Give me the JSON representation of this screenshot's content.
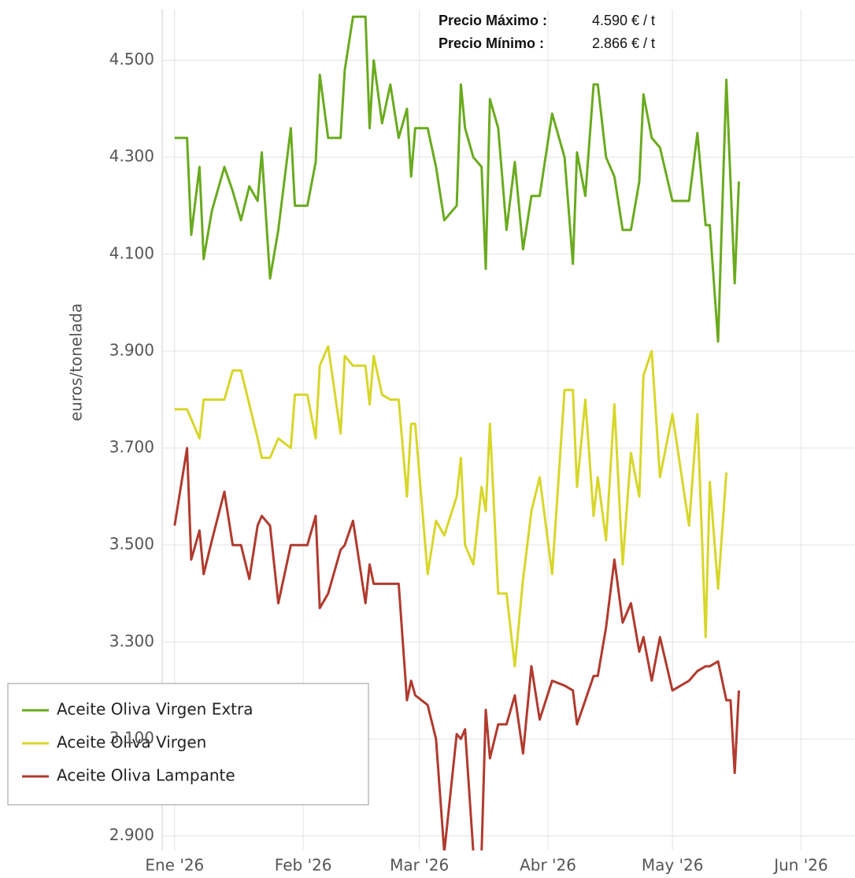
{
  "chart_data": {
    "type": "line",
    "y_label": "euros/tonelada",
    "annotations": [
      {
        "label": "Precio Máximo :",
        "value": "4.590  € / t"
      },
      {
        "label": "Precio Mínimo :",
        "value": "2.866  € /  t"
      }
    ],
    "x": [
      0,
      3,
      4,
      6,
      7,
      9,
      12,
      14,
      16,
      18,
      20,
      21,
      23,
      25,
      28,
      29,
      32,
      34,
      35,
      37,
      40,
      41,
      43,
      46,
      47,
      48,
      50,
      52,
      54,
      56,
      57,
      58,
      61,
      63,
      65,
      68,
      69,
      70,
      72,
      74,
      75,
      76,
      78,
      80,
      82,
      84,
      86,
      88,
      91,
      94,
      96,
      97,
      99,
      101,
      102,
      104,
      106,
      108,
      110,
      112,
      113,
      115,
      117,
      120,
      124,
      126,
      128,
      129,
      131,
      133,
      134,
      135,
      136
    ],
    "series": [
      {
        "name": "Aceite Oliva Virgen Extra",
        "color": "#6aaa1e",
        "values": [
          4340,
          4340,
          4140,
          4280,
          4090,
          4190,
          4280,
          4230,
          4170,
          4240,
          4210,
          4310,
          4050,
          4150,
          4360,
          4200,
          4200,
          4290,
          4470,
          4340,
          4340,
          4480,
          4590,
          4590,
          4360,
          4500,
          4370,
          4450,
          4340,
          4400,
          4260,
          4360,
          4360,
          4280,
          4170,
          4200,
          4450,
          4360,
          4300,
          4280,
          4070,
          4420,
          4360,
          4150,
          4290,
          4110,
          4220,
          4220,
          4390,
          4300,
          4080,
          4310,
          4220,
          4450,
          4450,
          4300,
          4260,
          4150,
          4150,
          4250,
          4430,
          4340,
          4320,
          4210,
          4210,
          4350,
          4160,
          4160,
          3920,
          4460,
          4250,
          4040,
          4250
        ]
      },
      {
        "name": "Aceite Oliva Virgen",
        "color": "#d8d62a",
        "values": [
          3780,
          3780,
          3760,
          3720,
          3800,
          3800,
          3800,
          3860,
          3860,
          3790,
          3720,
          3680,
          3680,
          3720,
          3700,
          3810,
          3810,
          3720,
          3870,
          3910,
          3730,
          3890,
          3870,
          3870,
          3790,
          3890,
          3810,
          3800,
          3800,
          3600,
          3750,
          3750,
          3440,
          3550,
          3520,
          3600,
          3680,
          3500,
          3460,
          3620,
          3570,
          3750,
          3400,
          3400,
          3250,
          3430,
          3570,
          3640,
          3440,
          3820,
          3820,
          3620,
          3800,
          3560,
          3640,
          3510,
          3790,
          3460,
          3690,
          3600,
          3850,
          3900,
          3640,
          3770,
          3540,
          3770,
          3310,
          3630,
          3410,
          3650,
          null,
          null,
          null
        ]
      },
      {
        "name": "Aceite Oliva Lampante",
        "color": "#b03a2e",
        "values": [
          3540,
          3700,
          3470,
          3530,
          3440,
          3510,
          3610,
          3500,
          3500,
          3430,
          3540,
          3560,
          3540,
          3380,
          3500,
          3500,
          3500,
          3560,
          3370,
          3400,
          3490,
          3500,
          3550,
          3380,
          3460,
          3420,
          3420,
          3420,
          3420,
          3180,
          3220,
          3190,
          3170,
          3100,
          2866,
          3110,
          3100,
          3120,
          2866,
          2866,
          3160,
          3060,
          3130,
          3130,
          3190,
          3070,
          3250,
          3140,
          3220,
          3210,
          3200,
          3130,
          3180,
          3230,
          3230,
          3330,
          3470,
          3340,
          3380,
          3280,
          3310,
          3220,
          3310,
          3200,
          3220,
          3240,
          3250,
          3250,
          3260,
          3180,
          3180,
          3030,
          3200
        ]
      }
    ],
    "xlim": [
      -3,
      164
    ],
    "xticks": [
      {
        "value": 0,
        "label": "Ene '26"
      },
      {
        "value": 31,
        "label": "Feb '26"
      },
      {
        "value": 59,
        "label": "Mar '26"
      },
      {
        "value": 90,
        "label": "Abr '26"
      },
      {
        "value": 120,
        "label": "May '26"
      },
      {
        "value": 151,
        "label": "Jun '26"
      }
    ],
    "ylim": [
      2870,
      4600
    ],
    "yticks": [
      {
        "value": 2900,
        "label": "2.900"
      },
      {
        "value": 3100,
        "label": "3.100"
      },
      {
        "value": 3300,
        "label": "3.300"
      },
      {
        "value": 3500,
        "label": "3.500"
      },
      {
        "value": 3700,
        "label": "3.700"
      },
      {
        "value": 3900,
        "label": "3.900"
      },
      {
        "value": 4100,
        "label": "4.100"
      },
      {
        "value": 4300,
        "label": "4.300"
      },
      {
        "value": 4500,
        "label": "4.500"
      }
    ],
    "grid": true,
    "legend": "lower-left"
  }
}
